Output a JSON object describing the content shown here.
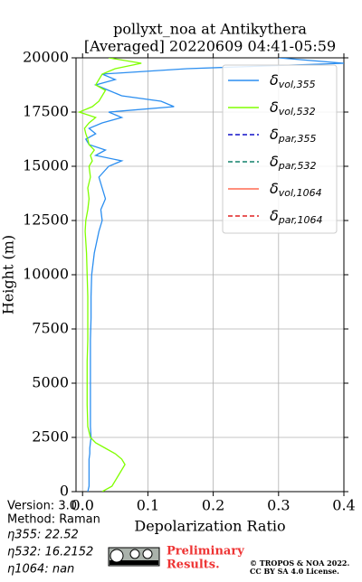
{
  "chart_data": {
    "type": "profile",
    "title": "pollyxt_noa at Antikythera",
    "subtitle": "[Averaged] 20220609 04:41-05:59",
    "x_label": "Depolarization Ratio",
    "y_label": "Height (m)",
    "xlim": [
      -0.01,
      0.4
    ],
    "ylim": [
      0,
      20000
    ],
    "xticks": [
      {
        "value": 0,
        "label": "0.0"
      },
      0.1,
      0.2,
      0.3,
      0.4
    ],
    "yticks": [
      0,
      2500,
      5000,
      7500,
      10000,
      12500,
      15000,
      17500,
      20000
    ],
    "grid": true,
    "legend": "upper right",
    "y": [
      0,
      250,
      500,
      750,
      1000,
      1250,
      1500,
      1750,
      2000,
      2250,
      2500,
      3000,
      4000,
      5000,
      6000,
      7000,
      8000,
      9000,
      10000,
      11000,
      12000,
      12500,
      13000,
      13500,
      14000,
      14500,
      15000,
      15250,
      15500,
      15750,
      16000,
      16250,
      16500,
      16750,
      17000,
      17250,
      17500,
      17750,
      18000,
      18250,
      18500,
      18750,
      19000,
      19250,
      19500,
      19750,
      20000
    ],
    "series": [
      {
        "name": "δvol,355",
        "color": "#2b8ef0",
        "dashed": false,
        "values": [
          0.008,
          0.01,
          0.01,
          0.01,
          0.01,
          0.01,
          0.01,
          0.011,
          0.011,
          0.012,
          0.013,
          0.012,
          0.012,
          0.012,
          0.012,
          0.012,
          0.013,
          0.013,
          0.014,
          0.018,
          0.025,
          0.03,
          0.028,
          0.035,
          0.03,
          0.025,
          0.04,
          0.06,
          0.02,
          0.035,
          0.01,
          0.005,
          0.02,
          0.01,
          0.03,
          0.06,
          0.04,
          0.14,
          0.12,
          0.06,
          0.04,
          0.02,
          0.05,
          0.03,
          0.16,
          0.4,
          0.3
        ]
      },
      {
        "name": "δvol,532",
        "color": "#80ff00",
        "dashed": false,
        "values": [
          0.03,
          0.045,
          0.05,
          0.055,
          0.06,
          0.065,
          0.06,
          0.05,
          0.035,
          0.02,
          0.012,
          0.008,
          0.007,
          0.007,
          0.007,
          0.008,
          0.008,
          0.008,
          0.007,
          0.006,
          0.004,
          0.005,
          0.008,
          0.01,
          0.008,
          0.012,
          0.01,
          0.015,
          0.012,
          0.018,
          0.01,
          0.008,
          0.005,
          0.003,
          0.01,
          0.02,
          -0.005,
          0.015,
          0.025,
          0.03,
          0.035,
          0.02,
          0.025,
          0.03,
          0.05,
          0.09,
          0.04
        ]
      },
      {
        "name": "δpar,355",
        "color": "#1010c8",
        "dashed": true,
        "values": []
      },
      {
        "name": "δpar,532",
        "color": "#10806a",
        "dashed": true,
        "values": []
      },
      {
        "name": "δvol,1064",
        "color": "#ff6a50",
        "dashed": false,
        "values": []
      },
      {
        "name": "δpar,1064",
        "color": "#e02020",
        "dashed": true,
        "values": []
      }
    ]
  },
  "info": {
    "version": "Version: 3.0",
    "method": "Method: Raman",
    "eta355": "η355:  22.52",
    "eta532": "η532: 16.2152",
    "eta1064": "η1064:    nan"
  },
  "footer": {
    "preliminary": "Preliminary",
    "results": "Results.",
    "copyright": "© TROPOS & NOA 2022.",
    "license": "CC BY SA 4.0 License."
  }
}
